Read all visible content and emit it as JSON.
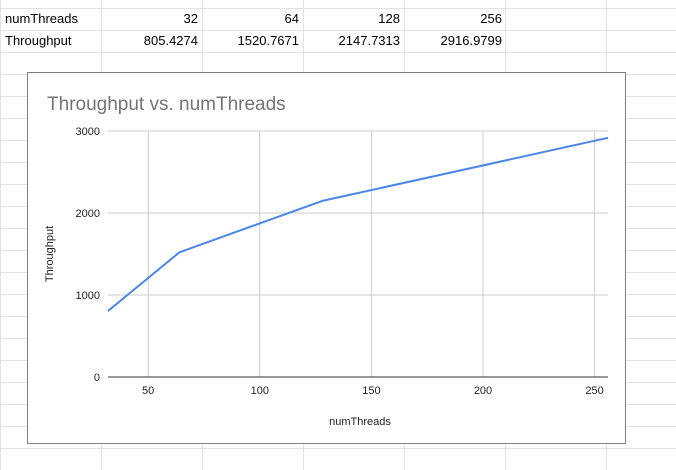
{
  "sheet": {
    "rows": [
      {
        "label": "numThreads",
        "values": [
          "32",
          "64",
          "128",
          "256"
        ]
      },
      {
        "label": "Throughput",
        "values": [
          "805.4274",
          "1520.7671",
          "2147.7313",
          "2916.9799"
        ]
      }
    ]
  },
  "colors": {
    "series": "#4a86e8",
    "gridline": "#cccccc",
    "cellBorder": "#e2e2e2",
    "title": "#757575",
    "axisText": "#222222"
  },
  "chart_data": {
    "type": "line",
    "title": "Throughput vs. numThreads",
    "xlabel": "numThreads",
    "ylabel": "Throughput",
    "x": [
      32,
      64,
      128,
      256
    ],
    "series": [
      {
        "values": [
          805.4274,
          1520.7671,
          2147.7313,
          2916.9799
        ]
      }
    ],
    "xlim": [
      32,
      256
    ],
    "ylim": [
      0,
      3000
    ],
    "xticks": [
      50,
      100,
      150,
      200,
      250
    ],
    "yticks": [
      0,
      1000,
      2000,
      3000
    ],
    "grid": true,
    "legend": "none"
  }
}
